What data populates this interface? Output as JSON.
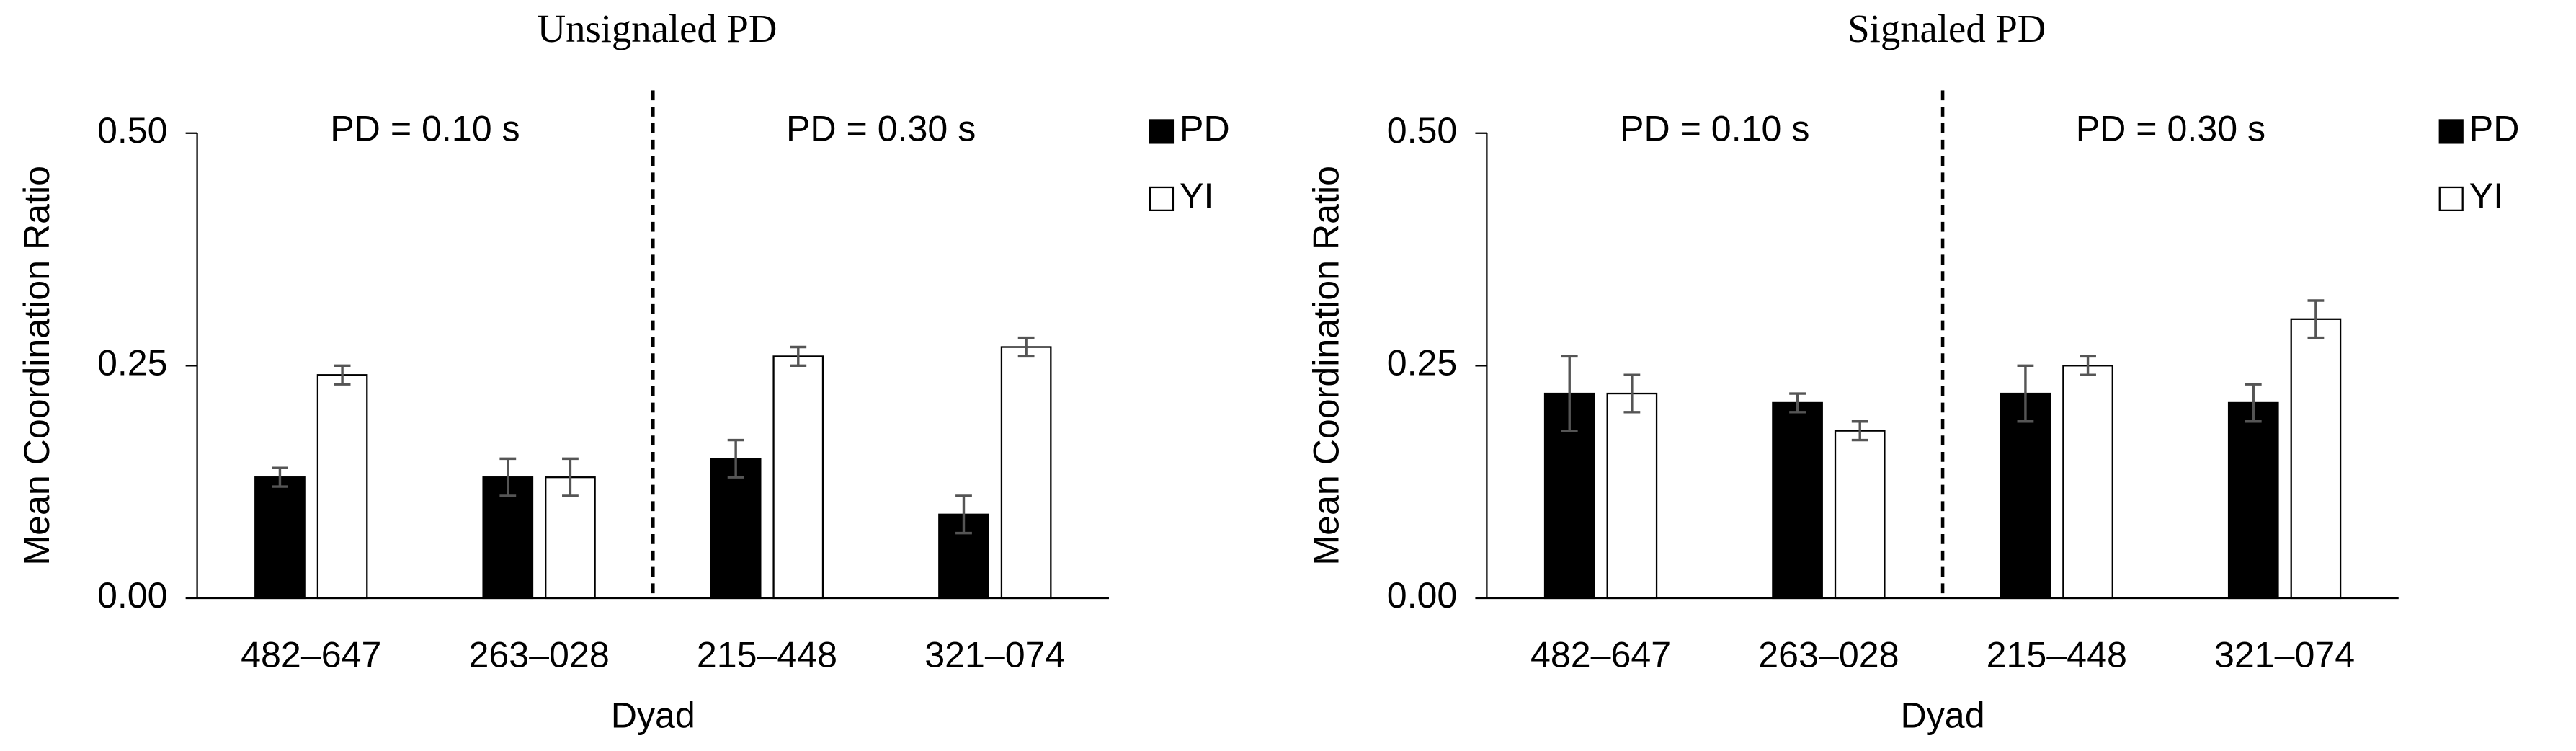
{
  "chart_data": [
    {
      "type": "bar",
      "title": "Unsignaled PD",
      "x_label": "Dyad",
      "y_label": "Mean Coordination Ratio",
      "categories": [
        "482–647",
        "263–028",
        "215–448",
        "321–074"
      ],
      "annotations": [
        "PD = 0.10 s",
        "PD = 0.30 s"
      ],
      "series": [
        {
          "name": "PD",
          "color": "#000000",
          "values": [
            0.13,
            0.13,
            0.15,
            0.09
          ],
          "errors": [
            0.01,
            0.02,
            0.02,
            0.02
          ]
        },
        {
          "name": "YI",
          "color": "#ffffff",
          "values": [
            0.24,
            0.13,
            0.26,
            0.27
          ],
          "errors": [
            0.01,
            0.02,
            0.01,
            0.01
          ]
        }
      ],
      "ylim": [
        0,
        0.5
      ],
      "yticks": [
        {
          "value": 0,
          "label": "0.00"
        },
        {
          "value": 0.25,
          "label": "0.25"
        },
        {
          "value": 0.5,
          "label": "0.50"
        }
      ],
      "legend": "upper right"
    },
    {
      "type": "bar",
      "title": "Signaled PD",
      "x_label": "Dyad",
      "y_label": "Mean Coordination Ratio",
      "categories": [
        "482–647",
        "263–028",
        "215–448",
        "321–074"
      ],
      "annotations": [
        "PD = 0.10 s",
        "PD = 0.30 s"
      ],
      "series": [
        {
          "name": "PD",
          "color": "#000000",
          "values": [
            0.22,
            0.21,
            0.22,
            0.21
          ],
          "errors": [
            0.04,
            0.01,
            0.03,
            0.02
          ]
        },
        {
          "name": "YI",
          "color": "#ffffff",
          "values": [
            0.22,
            0.18,
            0.25,
            0.3
          ],
          "errors": [
            0.02,
            0.01,
            0.01,
            0.02
          ]
        }
      ],
      "ylim": [
        0,
        0.5
      ],
      "yticks": [
        {
          "value": 0,
          "label": "0.00"
        },
        {
          "value": 0.25,
          "label": "0.25"
        },
        {
          "value": 0.5,
          "label": "0.50"
        }
      ],
      "legend": "upper right"
    }
  ]
}
